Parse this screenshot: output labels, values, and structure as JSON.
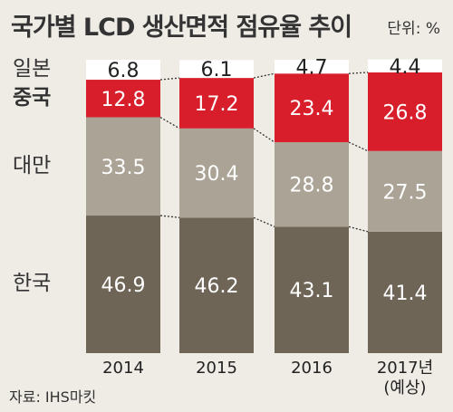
{
  "header": {
    "title": "국가별 LCD 생산면적 점유율 추이",
    "unit": "단위: %"
  },
  "source": "자료: IHS마킷",
  "chart_data": {
    "type": "bar",
    "stacked": true,
    "title": "국가별 LCD 생산면적 점유율 추이",
    "unit": "단위: %",
    "categories": [
      "2014",
      "2015",
      "2016",
      "2017년\n(예상)"
    ],
    "series": [
      {
        "name": "한국",
        "values": [
          46.9,
          46.2,
          43.1,
          41.4
        ],
        "color": "#6f6557",
        "label_bold": false
      },
      {
        "name": "대만",
        "values": [
          33.5,
          30.4,
          28.8,
          27.5
        ],
        "color": "#aba395",
        "label_bold": false
      },
      {
        "name": "중국",
        "values": [
          12.8,
          17.2,
          23.4,
          26.8
        ],
        "color": "#d81e2a",
        "label_bold": true
      },
      {
        "name": "일본",
        "values": [
          6.8,
          6.1,
          4.7,
          4.4
        ],
        "color": "#ffffff",
        "label_bold": false
      }
    ],
    "ylim": [
      0,
      100
    ],
    "legend": "left",
    "grid": false
  }
}
